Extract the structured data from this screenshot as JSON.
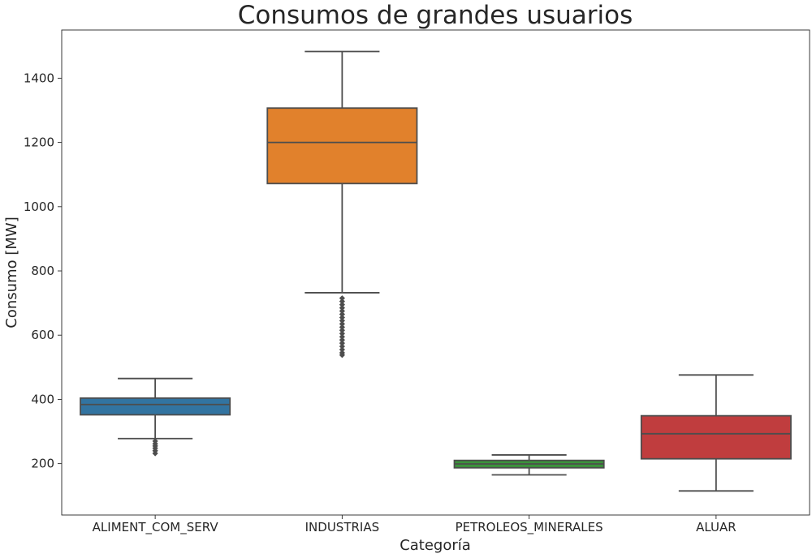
{
  "chart_data": {
    "type": "box",
    "title": "Consumos de grandes usuarios",
    "xlabel": "Categoría",
    "ylabel": "Consumo [MW]",
    "ylim": [
      40,
      1550
    ],
    "yticks": [
      200,
      400,
      600,
      800,
      1000,
      1200,
      1400
    ],
    "grid": false,
    "categories": [
      "ALIMENT_COM_SERV",
      "INDUSTRIAS",
      "PETROLEOS_MINERALES",
      "ALUAR"
    ],
    "series": [
      {
        "category": "ALIMENT_COM_SERV",
        "color": "#3274a1",
        "whisker_low": 278,
        "q1": 352,
        "median": 384,
        "q3": 404,
        "whisker_high": 465,
        "outliers": [
          270,
          262,
          255,
          248,
          240,
          232
        ]
      },
      {
        "category": "INDUSTRIAS",
        "color": "#e1812c",
        "whisker_low": 732,
        "q1": 1072,
        "median": 1200,
        "q3": 1307,
        "whisker_high": 1483,
        "outliers": [
          715,
          705,
          695,
          685,
          675,
          665,
          655,
          645,
          635,
          625,
          615,
          605,
          595,
          585,
          575,
          565,
          555,
          545,
          538
        ]
      },
      {
        "category": "PETROLEOS_MINERALES",
        "color": "#3a923a",
        "whisker_low": 165,
        "q1": 187,
        "median": 199,
        "q3": 210,
        "whisker_high": 227,
        "outliers": []
      },
      {
        "category": "ALUAR",
        "color": "#c03d3e",
        "whisker_low": 115,
        "q1": 215,
        "median": 293,
        "q3": 349,
        "whisker_high": 476,
        "outliers": []
      }
    ]
  }
}
